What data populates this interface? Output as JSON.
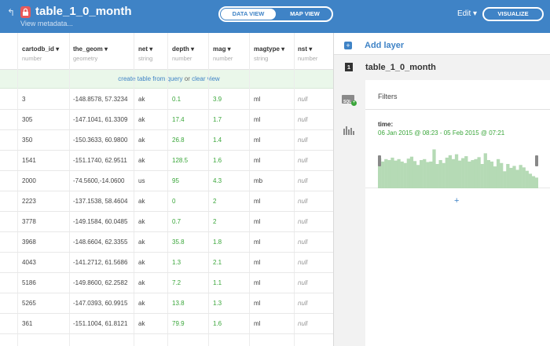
{
  "header": {
    "back_icon": "back-arrow-icon",
    "lock_icon": "lock-icon",
    "title": "table_1_0_month",
    "metadata_link": "View metadata...",
    "toggle": {
      "data_view": "DATA VIEW",
      "map_view": "MAP VIEW",
      "active": "data_view"
    },
    "edit_menu": "Edit",
    "edit_caret": "▾",
    "visualize_label": "VISUALIZE",
    "colors": {
      "header_bg": "#3f83c6",
      "lock_badge": "#e85a5a"
    }
  },
  "table": {
    "columns": [
      {
        "name": "cartodb_id",
        "type": "number"
      },
      {
        "name": "the_geom",
        "type": "geometry"
      },
      {
        "name": "net",
        "type": "string"
      },
      {
        "name": "depth",
        "type": "number"
      },
      {
        "name": "mag",
        "type": "number"
      },
      {
        "name": "magtype",
        "type": "string"
      },
      {
        "name": "nst",
        "type": "number"
      }
    ],
    "sort_caret": "▾",
    "sql_bar": {
      "create_table": "create table from query",
      "or": "or",
      "clear_view": "clear view"
    },
    "rows": [
      [
        "3",
        "-148.8578, 57.3234",
        "ak",
        "0.1",
        "3.9",
        "ml",
        "null"
      ],
      [
        "305",
        "-147.1041, 61.3309",
        "ak",
        "17.4",
        "1.7",
        "ml",
        "null"
      ],
      [
        "350",
        "-150.3633, 60.9800",
        "ak",
        "26.8",
        "1.4",
        "ml",
        "null"
      ],
      [
        "1541",
        "-151.1740, 62.9511",
        "ak",
        "128.5",
        "1.6",
        "ml",
        "null"
      ],
      [
        "2000",
        "-74.5600,-14.0600",
        "us",
        "95",
        "4.3",
        "mb",
        "null"
      ],
      [
        "2223",
        "-137.1538, 58.4604",
        "ak",
        "0",
        "2",
        "ml",
        "null"
      ],
      [
        "3778",
        "-149.1584, 60.0485",
        "ak",
        "0.7",
        "2",
        "ml",
        "null"
      ],
      [
        "3968",
        "-148.6604, 62.3355",
        "ak",
        "35.8",
        "1.8",
        "ml",
        "null"
      ],
      [
        "4043",
        "-141.2712, 61.5686",
        "ak",
        "1.3",
        "2.1",
        "ml",
        "null"
      ],
      [
        "5186",
        "-149.8600, 62.2582",
        "ak",
        "7.2",
        "1.1",
        "ml",
        "null"
      ],
      [
        "5265",
        "-147.0393, 60.9915",
        "ak",
        "13.8",
        "1.3",
        "ml",
        "null"
      ],
      [
        "361",
        "-151.1004, 61.8121",
        "ak",
        "79.9",
        "1.6",
        "ml",
        "null"
      ]
    ],
    "colors": {
      "sql_bar_bg": "#eaf7ea",
      "number_value": "#3aa63a"
    }
  },
  "panel": {
    "add_layer_icon": "plus-square-icon",
    "add_layer_label": "Add layer",
    "layer_number": "1",
    "layer_title": "table_1_0_month",
    "side_icons": [
      "sql-icon",
      "bar-chart-icon"
    ],
    "filters_label": "Filters",
    "filter": {
      "column": "time:",
      "range": "06 Jan 2015 @ 08:23 - 05 Feb 2015 @ 07:21",
      "histogram": [
        0.62,
        0.55,
        0.6,
        0.58,
        0.63,
        0.57,
        0.6,
        0.55,
        0.52,
        0.61,
        0.65,
        0.56,
        0.48,
        0.58,
        0.6,
        0.54,
        0.55,
        0.8,
        0.5,
        0.58,
        0.52,
        0.63,
        0.68,
        0.6,
        0.7,
        0.57,
        0.62,
        0.66,
        0.55,
        0.58,
        0.6,
        0.64,
        0.5,
        0.72,
        0.58,
        0.55,
        0.45,
        0.6,
        0.52,
        0.35,
        0.5,
        0.42,
        0.46,
        0.38,
        0.48,
        0.43,
        0.36,
        0.3,
        0.25,
        0.22
      ],
      "histogram_color": "#b5dab5"
    },
    "add_filter": "+"
  }
}
